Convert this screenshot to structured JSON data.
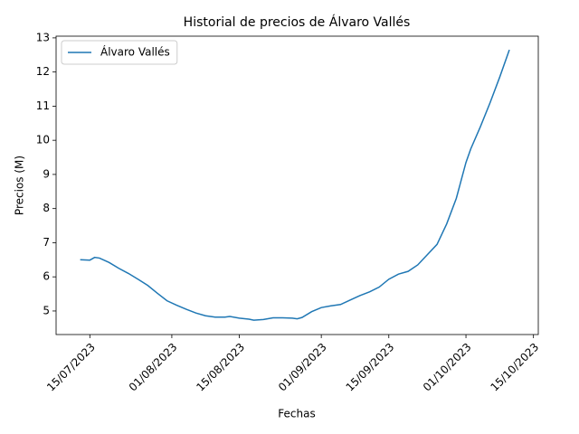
{
  "chart_data": {
    "type": "line",
    "title": "Historial de precios de Álvaro Vallés",
    "x_label": "Fechas",
    "y_label": "Precios (M)",
    "x": [
      "2023-07-13",
      "2023-07-15",
      "2023-07-16",
      "2023-07-17",
      "2023-07-19",
      "2023-07-21",
      "2023-07-23",
      "2023-07-25",
      "2023-07-27",
      "2023-07-29",
      "2023-07-31",
      "2023-08-02",
      "2023-08-04",
      "2023-08-06",
      "2023-08-08",
      "2023-08-10",
      "2023-08-12",
      "2023-08-13",
      "2023-08-15",
      "2023-08-17",
      "2023-08-18",
      "2023-08-20",
      "2023-08-22",
      "2023-08-24",
      "2023-08-26",
      "2023-08-27",
      "2023-08-28",
      "2023-08-30",
      "2023-09-01",
      "2023-09-03",
      "2023-09-05",
      "2023-09-07",
      "2023-09-09",
      "2023-09-11",
      "2023-09-13",
      "2023-09-15",
      "2023-09-17",
      "2023-09-19",
      "2023-09-21",
      "2023-09-23",
      "2023-09-25",
      "2023-09-27",
      "2023-09-29",
      "2023-10-01",
      "2023-10-02",
      "2023-10-04",
      "2023-10-06",
      "2023-10-08",
      "2023-10-10"
    ],
    "series": [
      {
        "name": "Álvaro Vallés",
        "color": "#1f77b4",
        "values": [
          6.5,
          6.49,
          6.57,
          6.55,
          6.42,
          6.25,
          6.1,
          5.93,
          5.75,
          5.52,
          5.3,
          5.17,
          5.05,
          4.94,
          4.86,
          4.82,
          4.82,
          4.84,
          4.79,
          4.76,
          4.73,
          4.75,
          4.8,
          4.8,
          4.79,
          4.77,
          4.81,
          4.98,
          5.1,
          5.15,
          5.19,
          5.32,
          5.45,
          5.56,
          5.7,
          5.93,
          6.08,
          6.16,
          6.35,
          6.65,
          6.95,
          7.55,
          8.3,
          9.35,
          9.75,
          10.4,
          11.1,
          11.85,
          12.65
        ]
      }
    ],
    "xlim": [
      "2023-07-08",
      "2023-10-16"
    ],
    "xticks": [
      {
        "value": "2023-07-15",
        "label": "15/07/2023"
      },
      {
        "value": "2023-08-01",
        "label": "01/08/2023"
      },
      {
        "value": "2023-08-15",
        "label": "15/08/2023"
      },
      {
        "value": "2023-09-01",
        "label": "01/09/2023"
      },
      {
        "value": "2023-09-15",
        "label": "15/09/2023"
      },
      {
        "value": "2023-10-01",
        "label": "01/10/2023"
      },
      {
        "value": "2023-10-15",
        "label": "15/10/2023"
      }
    ],
    "ylim": [
      4.31,
      13.05
    ],
    "yticks": [
      5,
      6,
      7,
      8,
      9,
      10,
      11,
      12,
      13
    ],
    "legend": "upper left",
    "grid": false
  }
}
